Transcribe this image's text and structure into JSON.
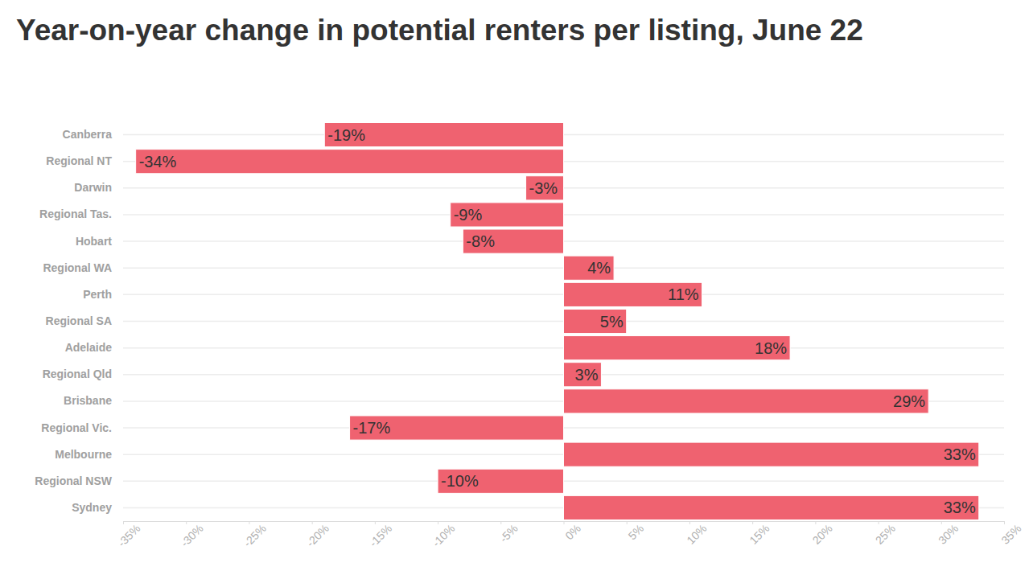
{
  "chart_data": {
    "type": "bar",
    "orientation": "horizontal",
    "title": "Year-on-year change in potential renters per listing, June 22",
    "categories": [
      "Canberra",
      "Regional NT",
      "Darwin",
      "Regional Tas.",
      "Hobart",
      "Regional WA",
      "Perth",
      "Regional SA",
      "Adelaide",
      "Regional Qld",
      "Brisbane",
      "Regional Vic.",
      "Melbourne",
      "Regional NSW",
      "Sydney"
    ],
    "values": [
      -19,
      -34,
      -3,
      -9,
      -8,
      4,
      11,
      5,
      18,
      3,
      29,
      -17,
      33,
      -10,
      33
    ],
    "value_labels": [
      "-19%",
      "-34%",
      "-3%",
      "-9%",
      "-8%",
      "4%",
      "11%",
      "5%",
      "18%",
      "3%",
      "29%",
      "-17%",
      "33%",
      "-10%",
      "33%"
    ],
    "data_labels": true,
    "color": "#ef6270",
    "xlim": [
      -35,
      35
    ],
    "xticks": [
      {
        "value": -35,
        "label": "-35%"
      },
      {
        "value": -30,
        "label": "-30%"
      },
      {
        "value": -25,
        "label": "-25%"
      },
      {
        "value": -20,
        "label": "-20%"
      },
      {
        "value": -15,
        "label": "-15%"
      },
      {
        "value": -10,
        "label": "-10%"
      },
      {
        "value": -5,
        "label": "-5%"
      },
      {
        "value": 0,
        "label": "0%"
      },
      {
        "value": 5,
        "label": "5%"
      },
      {
        "value": 10,
        "label": "10%"
      },
      {
        "value": 15,
        "label": "15%"
      },
      {
        "value": 20,
        "label": "20%"
      },
      {
        "value": 25,
        "label": "25%"
      },
      {
        "value": 30,
        "label": "30%"
      },
      {
        "value": 35,
        "label": "35%"
      }
    ]
  }
}
